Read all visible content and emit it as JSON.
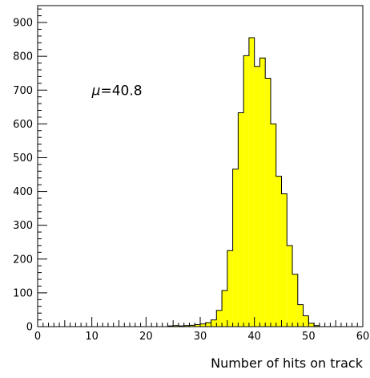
{
  "chart_data": {
    "type": "bar",
    "style": "histogram",
    "xlabel": "Number of hits on track",
    "ylabel": "",
    "xlim": [
      0,
      60
    ],
    "ylim": [
      0,
      950
    ],
    "x_ticks": [
      0,
      10,
      20,
      30,
      40,
      50,
      60
    ],
    "y_ticks": [
      0,
      100,
      200,
      300,
      400,
      500,
      600,
      700,
      800,
      900
    ],
    "grid": false,
    "fill_color": "#ffff00",
    "edge_color": "#000000",
    "annotation": {
      "prefix": "μ",
      "text": "=40.8"
    },
    "bins": [
      {
        "x0": 24,
        "x1": 25,
        "value": 2
      },
      {
        "x0": 25,
        "x1": 26,
        "value": 3
      },
      {
        "x0": 26,
        "x1": 27,
        "value": 2
      },
      {
        "x0": 27,
        "x1": 28,
        "value": 3
      },
      {
        "x0": 28,
        "x1": 29,
        "value": 4
      },
      {
        "x0": 29,
        "x1": 30,
        "value": 6
      },
      {
        "x0": 30,
        "x1": 31,
        "value": 8
      },
      {
        "x0": 31,
        "x1": 32,
        "value": 12
      },
      {
        "x0": 32,
        "x1": 33,
        "value": 20
      },
      {
        "x0": 33,
        "x1": 34,
        "value": 48
      },
      {
        "x0": 34,
        "x1": 35,
        "value": 107
      },
      {
        "x0": 35,
        "x1": 36,
        "value": 225
      },
      {
        "x0": 36,
        "x1": 37,
        "value": 466
      },
      {
        "x0": 37,
        "x1": 38,
        "value": 633
      },
      {
        "x0": 38,
        "x1": 39,
        "value": 802
      },
      {
        "x0": 39,
        "x1": 40,
        "value": 855
      },
      {
        "x0": 40,
        "x1": 41,
        "value": 770
      },
      {
        "x0": 41,
        "x1": 42,
        "value": 795
      },
      {
        "x0": 42,
        "x1": 43,
        "value": 735
      },
      {
        "x0": 43,
        "x1": 44,
        "value": 600
      },
      {
        "x0": 44,
        "x1": 45,
        "value": 445
      },
      {
        "x0": 45,
        "x1": 46,
        "value": 393
      },
      {
        "x0": 46,
        "x1": 47,
        "value": 240
      },
      {
        "x0": 47,
        "x1": 48,
        "value": 155
      },
      {
        "x0": 48,
        "x1": 49,
        "value": 65
      },
      {
        "x0": 49,
        "x1": 50,
        "value": 32
      },
      {
        "x0": 50,
        "x1": 51,
        "value": 10
      },
      {
        "x0": 51,
        "x1": 52,
        "value": 3
      }
    ]
  }
}
